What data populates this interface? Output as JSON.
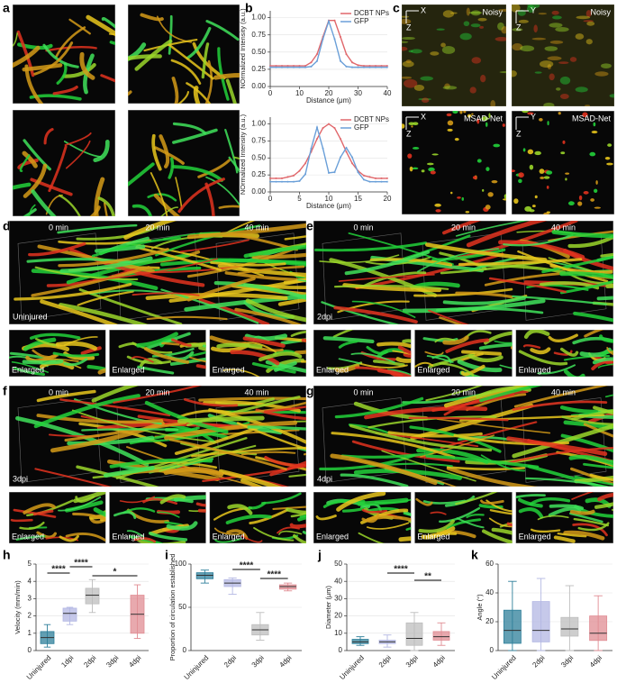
{
  "panels": {
    "labels": [
      "a",
      "b",
      "c",
      "d",
      "e",
      "f",
      "g",
      "h",
      "i",
      "j",
      "k"
    ],
    "panel_c": {
      "titles": [
        "Noisy",
        "MSAD-Net"
      ],
      "axes": [
        "X",
        "Y",
        "Z"
      ]
    },
    "times": [
      "0 min",
      "20 min",
      "40 min"
    ],
    "conditions": [
      "Uninjured",
      "2dpi",
      "3dpi",
      "4dpi"
    ],
    "enlarged": "Enlarged"
  },
  "chart_data": [
    {
      "type": "line",
      "xlabel": "Distance (μm)",
      "ylabel": "NOrmalized Intensity (a.u.)",
      "grid": true,
      "legend": "upper right",
      "x": [
        0,
        2,
        4,
        6,
        8,
        10,
        12,
        14,
        16,
        18,
        20,
        22,
        24,
        26,
        28,
        30,
        32,
        34,
        36,
        38,
        40
      ],
      "xlim": [
        0,
        40
      ],
      "xticks": [
        0,
        10,
        20,
        30,
        40
      ],
      "ylim": [
        0,
        1.1
      ],
      "yticks": [
        {
          "value": 0,
          "label": "0.00"
        },
        {
          "value": 0.25,
          "label": "0.25"
        },
        {
          "value": 0.5,
          "label": "0.50"
        },
        {
          "value": 0.75,
          "label": "0.75"
        },
        {
          "value": 1,
          "label": "1.00"
        }
      ],
      "series": [
        {
          "name": "DCBT NPs",
          "color": "#e0666a",
          "values": [
            0.3,
            0.3,
            0.3,
            0.3,
            0.3,
            0.3,
            0.3,
            0.35,
            0.47,
            0.72,
            0.96,
            0.96,
            0.72,
            0.47,
            0.35,
            0.31,
            0.3,
            0.3,
            0.3,
            0.3,
            0.3
          ]
        },
        {
          "name": "GFP",
          "color": "#6a9fd8",
          "values": [
            0.28,
            0.28,
            0.28,
            0.28,
            0.28,
            0.28,
            0.28,
            0.29,
            0.37,
            0.69,
            0.95,
            0.69,
            0.37,
            0.29,
            0.28,
            0.28,
            0.28,
            0.28,
            0.28,
            0.28,
            0.28
          ]
        }
      ]
    },
    {
      "type": "line",
      "xlabel": "Distance (μm)",
      "ylabel": "NOrmalized Intensity (a.u.)",
      "grid": true,
      "legend": "upper right",
      "x": [
        0,
        1,
        2,
        3,
        4,
        5,
        6,
        7,
        8,
        9,
        10,
        11,
        12,
        13,
        14,
        15,
        16,
        17,
        18,
        19,
        20
      ],
      "xlim": [
        0,
        20
      ],
      "xticks": [
        0,
        5,
        10,
        15,
        20
      ],
      "ylim": [
        0,
        1.1
      ],
      "yticks": [
        {
          "value": 0,
          "label": "0.00"
        },
        {
          "value": 0.25,
          "label": "0.25"
        },
        {
          "value": 0.5,
          "label": "0.50"
        },
        {
          "value": 0.75,
          "label": "0.75"
        },
        {
          "value": 1,
          "label": "1.00"
        }
      ],
      "series": [
        {
          "name": "DCBT NPs",
          "color": "#e0666a",
          "values": [
            0.2,
            0.2,
            0.2,
            0.22,
            0.24,
            0.31,
            0.42,
            0.59,
            0.78,
            0.94,
            1.0,
            0.94,
            0.78,
            0.59,
            0.42,
            0.31,
            0.24,
            0.22,
            0.2,
            0.2,
            0.2
          ]
        },
        {
          "name": "GFP",
          "color": "#6a9fd8",
          "values": [
            0.15,
            0.15,
            0.15,
            0.15,
            0.15,
            0.16,
            0.26,
            0.64,
            0.95,
            0.64,
            0.28,
            0.29,
            0.51,
            0.65,
            0.51,
            0.29,
            0.18,
            0.15,
            0.15,
            0.15,
            0.15
          ]
        }
      ]
    },
    {
      "type": "box",
      "ylabel": "Velocity (mm/min)",
      "grid": true,
      "categories": [
        "Uninjured",
        "1dpi",
        "2dpi",
        "3dpi",
        "4dpi"
      ],
      "colors": [
        "#2e7f9a",
        "#b3b7e3",
        "#bdbdbd",
        "#bdbdbd",
        "#e08c93"
      ],
      "min": [
        0.2,
        1.5,
        2.2,
        null,
        0.7
      ],
      "q1": [
        0.4,
        1.7,
        2.7,
        null,
        1.0
      ],
      "median": [
        0.75,
        2.15,
        3.2,
        null,
        2.1
      ],
      "q3": [
        1.1,
        2.45,
        3.6,
        null,
        3.2
      ],
      "max": [
        1.5,
        2.5,
        4.1,
        null,
        3.8
      ],
      "ylim": [
        0,
        5
      ],
      "yticks": [
        0,
        1,
        2,
        3,
        4,
        5
      ],
      "annotations": [
        "****",
        "****",
        "*"
      ]
    },
    {
      "type": "box",
      "ylabel": "Proportion of circulation established",
      "grid": true,
      "categories": [
        "Uninjured",
        "2dpi",
        "3dpi",
        "4dpi"
      ],
      "colors": [
        "#2e7f9a",
        "#b3b7e3",
        "#bdbdbd",
        "#e08c93"
      ],
      "min": [
        78,
        65,
        12,
        69
      ],
      "q1": [
        83,
        74,
        18,
        71
      ],
      "median": [
        87,
        78,
        24,
        74
      ],
      "q3": [
        90,
        82,
        30,
        76
      ],
      "max": [
        93,
        84,
        44,
        78
      ],
      "ylim": [
        0,
        100
      ],
      "yticks": [
        0,
        50,
        100
      ],
      "annotations": [
        "****",
        "****"
      ]
    },
    {
      "type": "box",
      "ylabel": "Diameter (μm)",
      "grid": true,
      "categories": [
        "Uninjured",
        "2dpi",
        "3dpi",
        "4dpi"
      ],
      "colors": [
        "#2e7f9a",
        "#b3b7e3",
        "#bdbdbd",
        "#e08c93"
      ],
      "min": [
        3,
        2,
        0,
        3
      ],
      "q1": [
        4,
        4,
        3,
        6
      ],
      "median": [
        5,
        5,
        7,
        8
      ],
      "q3": [
        6.5,
        6,
        16,
        11
      ],
      "max": [
        8,
        9,
        22,
        16
      ],
      "ylim": [
        0,
        50
      ],
      "yticks": [
        0,
        10,
        20,
        30,
        40,
        50
      ],
      "annotations": [
        "****",
        "**"
      ]
    },
    {
      "type": "box",
      "ylabel": "Angle (°)",
      "grid": true,
      "categories": [
        "Uninjured",
        "2dpi",
        "3dpi",
        "4dpi"
      ],
      "colors": [
        "#2e7f9a",
        "#b3b7e3",
        "#bdbdbd",
        "#e08c93"
      ],
      "min": [
        0,
        0,
        0,
        0
      ],
      "q1": [
        5,
        6,
        10,
        7
      ],
      "median": [
        14,
        14,
        15,
        12
      ],
      "q3": [
        28,
        34,
        23,
        24
      ],
      "max": [
        48,
        50,
        45,
        38
      ],
      "ylim": [
        0,
        60
      ],
      "yticks": [
        0,
        20,
        40,
        60
      ],
      "annotations": []
    }
  ]
}
